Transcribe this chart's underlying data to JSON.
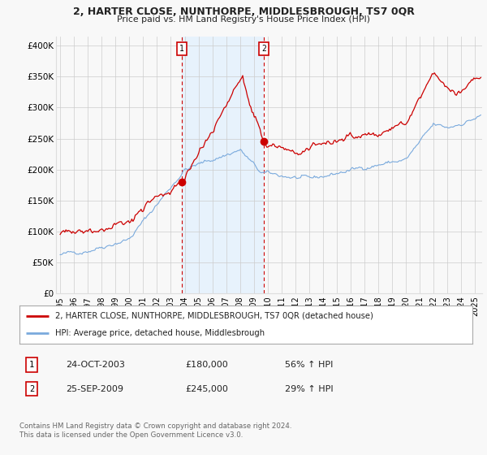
{
  "title": "2, HARTER CLOSE, NUNTHORPE, MIDDLESBROUGH, TS7 0QR",
  "subtitle": "Price paid vs. HM Land Registry's House Price Index (HPI)",
  "ylabel_ticks": [
    "£0",
    "£50K",
    "£100K",
    "£150K",
    "£200K",
    "£250K",
    "£300K",
    "£350K",
    "£400K"
  ],
  "ytick_values": [
    0,
    50000,
    100000,
    150000,
    200000,
    250000,
    300000,
    350000,
    400000
  ],
  "ylim": [
    0,
    415000
  ],
  "xlim_start": 1994.7,
  "xlim_end": 2025.5,
  "sale1_date": 2003.81,
  "sale1_price": 180000,
  "sale1_label": "1",
  "sale2_date": 2009.73,
  "sale2_price": 245000,
  "sale2_label": "2",
  "legend_line1": "2, HARTER CLOSE, NUNTHORPE, MIDDLESBROUGH, TS7 0QR (detached house)",
  "legend_line2": "HPI: Average price, detached house, Middlesbrough",
  "transaction1_date": "24-OCT-2003",
  "transaction1_price": "£180,000",
  "transaction1_hpi": "56% ↑ HPI",
  "transaction2_date": "25-SEP-2009",
  "transaction2_price": "£245,000",
  "transaction2_hpi": "29% ↑ HPI",
  "footer": "Contains HM Land Registry data © Crown copyright and database right 2024.\nThis data is licensed under the Open Government Licence v3.0.",
  "red_color": "#cc0000",
  "blue_color": "#7aaadd",
  "blue_fill": "#ddeeff",
  "background_color": "#f8f8f8",
  "xticks": [
    1995,
    1996,
    1997,
    1998,
    1999,
    2000,
    2001,
    2002,
    2003,
    2004,
    2005,
    2006,
    2007,
    2008,
    2009,
    2010,
    2011,
    2012,
    2013,
    2014,
    2015,
    2016,
    2017,
    2018,
    2019,
    2020,
    2021,
    2022,
    2023,
    2024,
    2025
  ]
}
